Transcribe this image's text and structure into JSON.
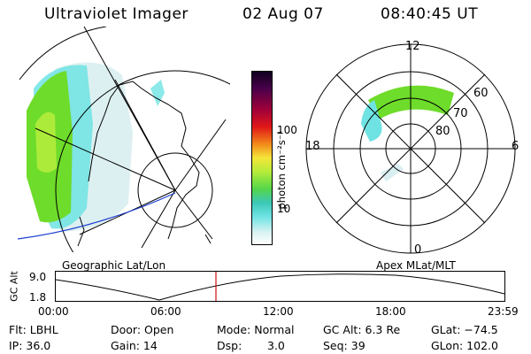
{
  "header": {
    "title": "Ultraviolet Imager",
    "date": "02 Aug 07",
    "time": "08:40:45 UT"
  },
  "colorbar": {
    "label": "photon cm⁻²s⁻¹",
    "ticks": [
      "100",
      "10"
    ]
  },
  "polar": {
    "hour_labels": [
      "12",
      "18",
      "6",
      "0"
    ],
    "lat_labels": [
      "60",
      "70",
      "80"
    ]
  },
  "captions": {
    "geo": "Geographic Lat/Lon",
    "apex": "Apex MLat/MLT"
  },
  "altitude": {
    "ylabel": "GC Alt",
    "ymax": "9.0",
    "ymin": "1.8",
    "x_ticks": [
      "00:00",
      "06:00",
      "12:00",
      "18:00",
      "23:59"
    ],
    "current_time_marker": "08:40"
  },
  "info": {
    "flt": "Flt: LBHL",
    "ip": "IP: 36.0",
    "door": "Door: Open",
    "gain": "Gain: 14",
    "mode": "Mode: Normal",
    "dsp_label": "Dsp:",
    "dsp_value": "3.0",
    "gcalt": "GC Alt: 6.3 Re",
    "seq": "Seq: 39",
    "glat": "GLat: −74.5",
    "glon": "GLon: 102.0"
  },
  "colors": {
    "aurora_green": "#6edc2a",
    "aurora_lime": "#b4ec3c",
    "aurora_cyan": "#6fe3e3",
    "aurora_pale": "#d9eef0",
    "track_blue": "#1a3ccf",
    "marker_red": "#cc1010"
  }
}
